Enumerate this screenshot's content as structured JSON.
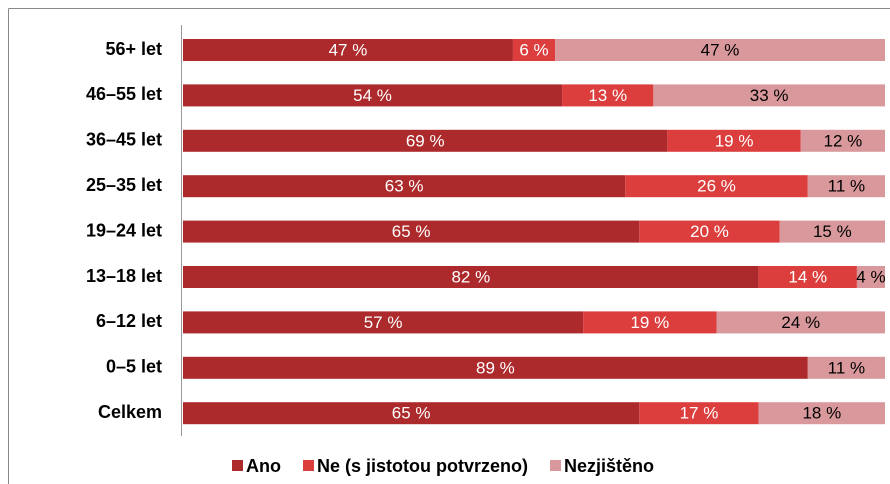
{
  "chart_data": {
    "type": "stacked-bar-horizontal",
    "categories": [
      "56+ let",
      "46–55 let",
      "36–45 let",
      "25–35 let",
      "19–24 let",
      "13–18 let",
      "6–12 let",
      "0–5 let",
      "Celkem"
    ],
    "series": [
      {
        "name": "Ano",
        "color": "#ad2a2c",
        "values": [
          47,
          54,
          69,
          63,
          65,
          82,
          57,
          89,
          65
        ],
        "value_labels": [
          "47 %",
          "54 %",
          "69 %",
          "63 %",
          "65 %",
          "82 %",
          "57 %",
          "89 %",
          "65 %"
        ]
      },
      {
        "name": "Ne (s jistotou potvrzeno)",
        "color": "#dc3e3e",
        "values": [
          6,
          13,
          19,
          26,
          20,
          14,
          19,
          null,
          17
        ],
        "value_labels": [
          "6 %",
          "13 %",
          "19 %",
          "26 %",
          "20 %",
          "14 %",
          "19 %",
          null,
          "17 %"
        ]
      },
      {
        "name": "Nezjištěno",
        "color": "#d9999c",
        "values": [
          47,
          33,
          12,
          11,
          15,
          4,
          24,
          11,
          18
        ],
        "value_labels": [
          "47 %",
          "33 %",
          "12 %",
          "11 %",
          "15 %",
          "4 %",
          "24 %",
          "11 %",
          "18 %"
        ]
      }
    ],
    "xlim": [
      0,
      100
    ]
  }
}
